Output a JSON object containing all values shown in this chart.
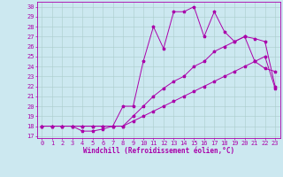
{
  "xlabel": "Windchill (Refroidissement éolien,°C)",
  "bg_color": "#cce8f0",
  "line_color": "#aa00aa",
  "grid_color": "#aacccc",
  "xlim": [
    -0.5,
    23.5
  ],
  "ylim": [
    16.8,
    30.5
  ],
  "xticks": [
    0,
    1,
    2,
    3,
    4,
    5,
    6,
    7,
    8,
    9,
    10,
    11,
    12,
    13,
    14,
    15,
    16,
    17,
    18,
    19,
    20,
    21,
    22,
    23
  ],
  "yticks": [
    17,
    18,
    19,
    20,
    21,
    22,
    23,
    24,
    25,
    26,
    27,
    28,
    29,
    30
  ],
  "series1_x": [
    0,
    1,
    2,
    3,
    4,
    5,
    6,
    7,
    8,
    9,
    10,
    11,
    12,
    13,
    14,
    15,
    16,
    17,
    18,
    19,
    20,
    21,
    22,
    23
  ],
  "series1_y": [
    18,
    18,
    18,
    18,
    17.5,
    17.5,
    17.7,
    18,
    20,
    20,
    24.5,
    28,
    25.8,
    29.5,
    29.5,
    30,
    27,
    29.5,
    27.5,
    26.5,
    27,
    24.5,
    23.8,
    23.5
  ],
  "series2_x": [
    0,
    1,
    2,
    3,
    4,
    5,
    6,
    7,
    8,
    9,
    10,
    11,
    12,
    13,
    14,
    15,
    16,
    17,
    18,
    19,
    20,
    21,
    22,
    23
  ],
  "series2_y": [
    18,
    18,
    18,
    18,
    18,
    18,
    18,
    18,
    18,
    19,
    20,
    21,
    21.8,
    22.5,
    23,
    24,
    24.5,
    25.5,
    26,
    26.5,
    27,
    26.8,
    26.5,
    22
  ],
  "series3_x": [
    0,
    1,
    2,
    3,
    4,
    5,
    6,
    7,
    8,
    9,
    10,
    11,
    12,
    13,
    14,
    15,
    16,
    17,
    18,
    19,
    20,
    21,
    22,
    23
  ],
  "series3_y": [
    18,
    18,
    18,
    18,
    18,
    18,
    18,
    18,
    18,
    18.5,
    19,
    19.5,
    20,
    20.5,
    21,
    21.5,
    22,
    22.5,
    23,
    23.5,
    24,
    24.5,
    25,
    21.8
  ],
  "xlabel_fontsize": 5.5,
  "tick_fontsize": 5.0
}
